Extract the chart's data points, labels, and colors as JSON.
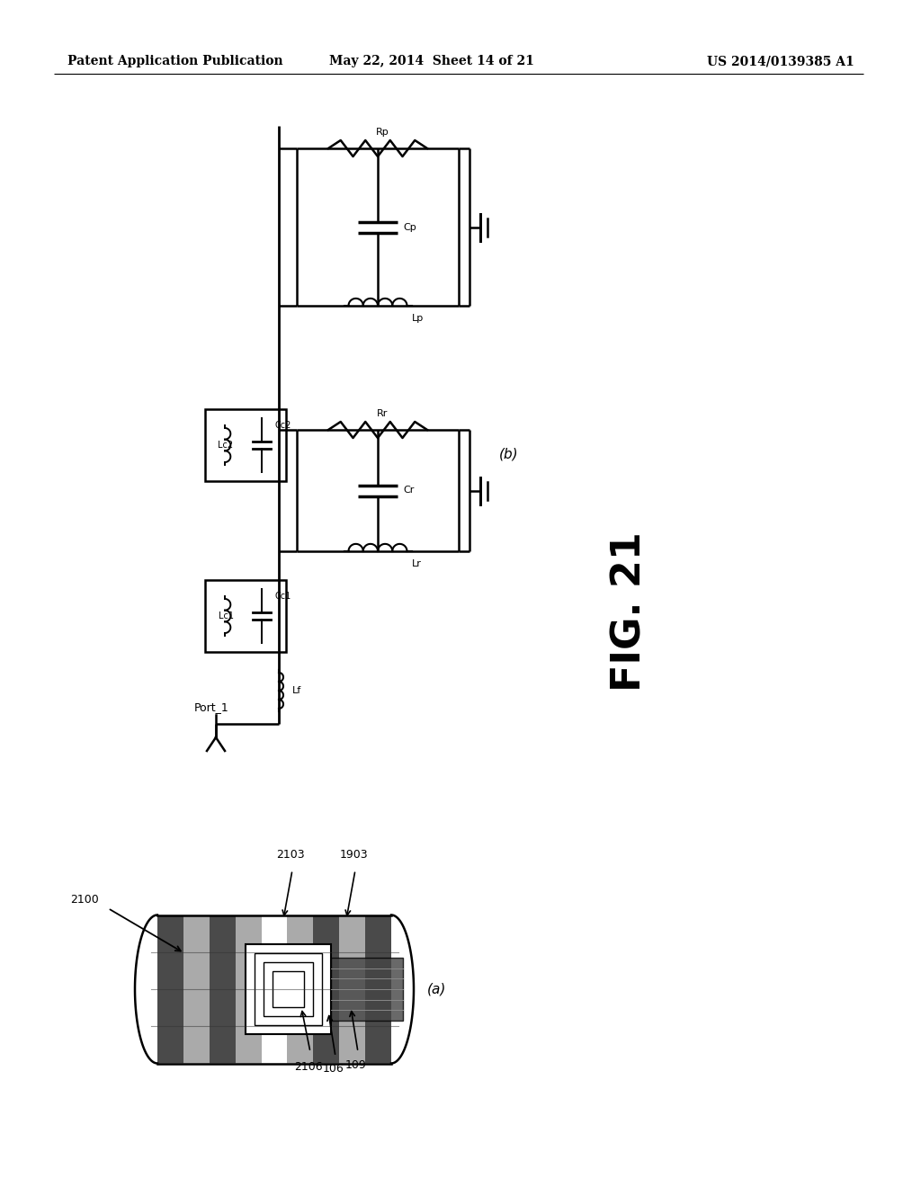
{
  "header_left": "Patent Application Publication",
  "header_mid": "May 22, 2014  Sheet 14 of 21",
  "header_right": "US 2014/0139385 A1",
  "fig_label": "FIG. 21",
  "label_a": "(a)",
  "label_b": "(b)",
  "bg_color": "#ffffff",
  "line_color": "#000000",
  "text_color": "#000000"
}
